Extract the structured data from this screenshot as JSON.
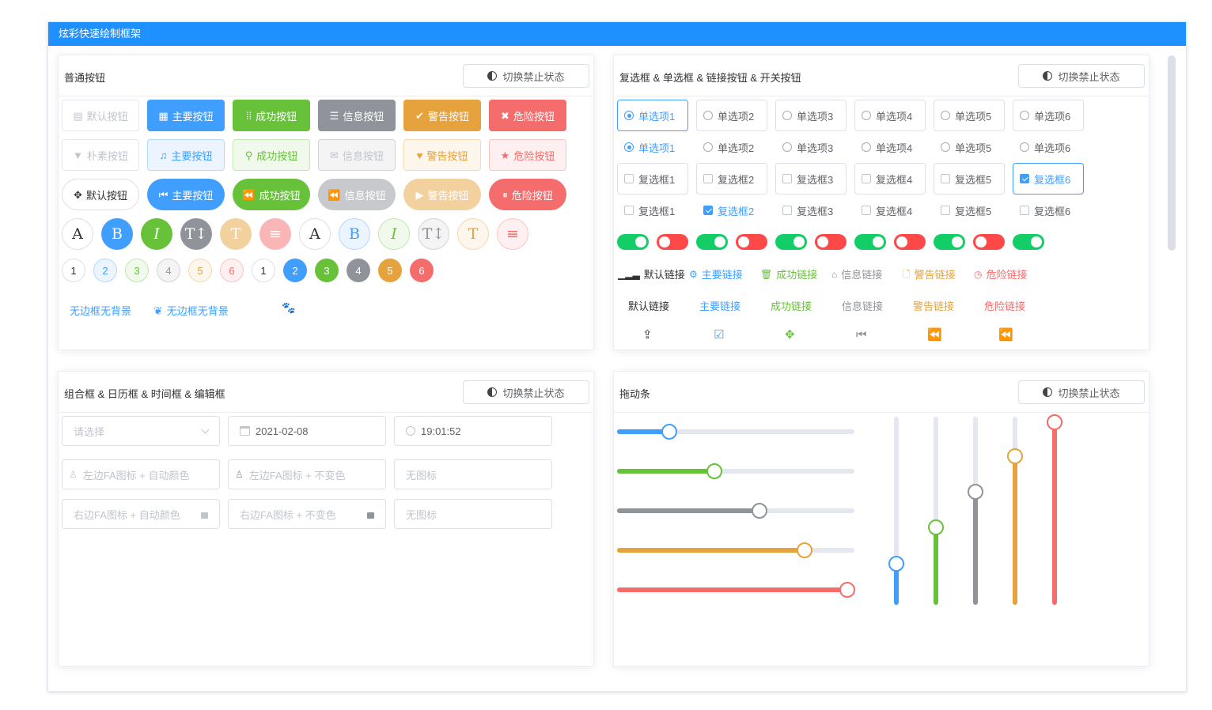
{
  "window_title": "炫彩快速绘制框架",
  "toggle_disabled_label": "切换禁止状态",
  "colors": {
    "primary": "#409eff",
    "success": "#67c23a",
    "info": "#909399",
    "warning": "#e6a23c",
    "danger": "#f56c6c",
    "titlebar": "#1e90ff"
  },
  "panel_buttons": {
    "title": "普通按钮",
    "row1": [
      {
        "label": "默认按钮",
        "icon": "film-icon"
      },
      {
        "label": "主要按钮",
        "icon": "grid-icon"
      },
      {
        "label": "成功按钮",
        "icon": "th-icon"
      },
      {
        "label": "信息按钮",
        "icon": "list-icon"
      },
      {
        "label": "警告按钮",
        "icon": "check-icon"
      },
      {
        "label": "危险按钮",
        "icon": "close-icon"
      }
    ],
    "row2": [
      {
        "label": "朴素按钮",
        "icon": "filter-icon"
      },
      {
        "label": "主要按钮",
        "icon": "music-icon"
      },
      {
        "label": "成功按钮",
        "icon": "search-icon"
      },
      {
        "label": "信息按钮",
        "icon": "envelope-icon"
      },
      {
        "label": "警告按钮",
        "icon": "heart-icon"
      },
      {
        "label": "危险按钮",
        "icon": "star-icon"
      }
    ],
    "row3": [
      {
        "label": "默认按钮",
        "icon": "move-icon"
      },
      {
        "label": "主要按钮",
        "icon": "step-backward-icon"
      },
      {
        "label": "成功按钮",
        "icon": "fast-backward-icon"
      },
      {
        "label": "信息按钮",
        "icon": "backward-icon"
      },
      {
        "label": "警告按钮",
        "icon": "play-icon"
      },
      {
        "label": "危险按钮",
        "icon": "pause-icon"
      }
    ],
    "circle_glyphs": [
      "A",
      "B",
      "I",
      "T↕",
      "T",
      "≡",
      "A",
      "B",
      "I",
      "T↕",
      "T",
      "≡"
    ],
    "numbers": [
      "1",
      "2",
      "3",
      "4",
      "5",
      "6",
      "1",
      "2",
      "3",
      "4",
      "5",
      "6"
    ],
    "text_link1": "无边框无背景",
    "text_link2": "无边框无背景"
  },
  "panel_checks": {
    "title": "复选框 & 单选框 & 链接按钮 & 开关按钮",
    "radios_bordered": [
      "单选项1",
      "单选项2",
      "单选项3",
      "单选项4",
      "单选项5",
      "单选项6"
    ],
    "radios_plain": [
      "单选项1",
      "单选项2",
      "单选项3",
      "单选项4",
      "单选项5",
      "单选项6"
    ],
    "radio_bordered_selected": 0,
    "radio_plain_selected": 0,
    "checks_bordered": [
      "复选框1",
      "复选框2",
      "复选框3",
      "复选框4",
      "复选框5",
      "复选框6"
    ],
    "checks_bordered_checked": [
      false,
      false,
      false,
      false,
      false,
      true
    ],
    "checks_plain": [
      "复选框1",
      "复选框2",
      "复选框3",
      "复选框4",
      "复选框5",
      "复选框6"
    ],
    "checks_plain_checked": [
      false,
      true,
      false,
      false,
      false,
      false
    ],
    "switches": [
      true,
      false,
      true,
      false,
      true,
      false,
      true,
      false,
      true,
      false,
      true
    ],
    "icon_links": [
      {
        "label": "默认链接",
        "icon": "signal-icon"
      },
      {
        "label": "主要链接",
        "icon": "gear-icon"
      },
      {
        "label": "成功链接",
        "icon": "trash-icon"
      },
      {
        "label": "信息链接",
        "icon": "home-icon"
      },
      {
        "label": "警告链接",
        "icon": "file-icon"
      },
      {
        "label": "危险链接",
        "icon": "clock-icon"
      }
    ],
    "text_links": [
      "默认链接",
      "主要链接",
      "成功链接",
      "信息链接",
      "警告链接",
      "危险链接"
    ],
    "icon_only": [
      "share-icon",
      "checkbox-icon",
      "move-icon",
      "step-backward-icon",
      "fast-backward-icon",
      "backward-icon"
    ]
  },
  "panel_inputs": {
    "title": "组合框 & 日历框 & 时间框 & 编辑框",
    "select_placeholder": "请选择",
    "date_value": "2021-02-08",
    "time_value": "19:01:52",
    "inputs_row1": [
      "左边FA图标 + 自动颜色",
      "左边FA图标 + 不变色",
      "无图标"
    ],
    "inputs_row2": [
      "右边FA图标 + 自动颜色",
      "右边FA图标 + 不变色",
      "无图标"
    ]
  },
  "panel_sliders": {
    "title": "拖动条",
    "horizontal": [
      0.22,
      0.41,
      0.6,
      0.79,
      0.97
    ],
    "vertical": [
      0.22,
      0.41,
      0.6,
      0.79,
      0.97
    ]
  }
}
